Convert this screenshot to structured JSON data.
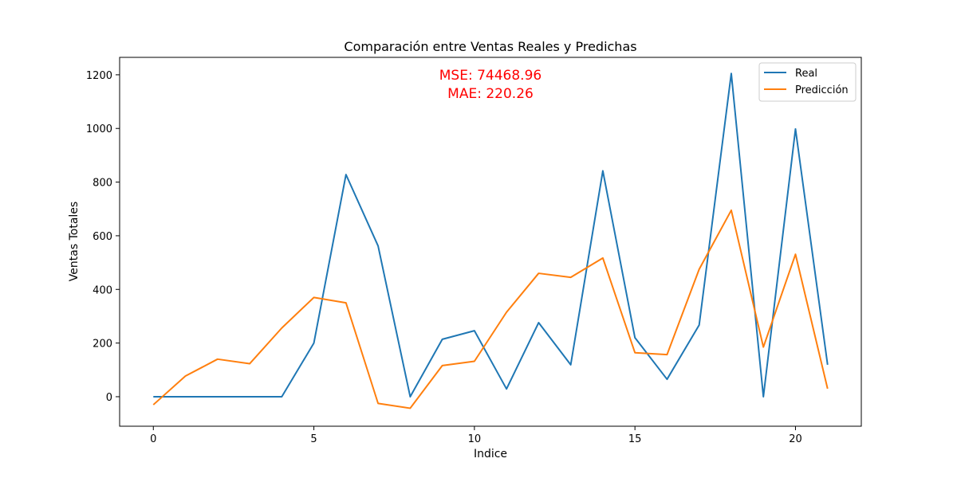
{
  "chart_data": {
    "type": "line",
    "title": "Comparación entre Ventas Reales y Predichas",
    "xlabel": "Indice",
    "ylabel": "Ventas Totales",
    "xlim": [
      -1.05,
      22.05
    ],
    "ylim": [
      -110,
      1265
    ],
    "xticks": [
      0,
      5,
      10,
      15,
      20
    ],
    "yticks": [
      0,
      200,
      400,
      600,
      800,
      1000,
      1200
    ],
    "grid": false,
    "legend_position": "top-right",
    "annotations": [
      "MSE: 74468.96",
      "MAE: 220.26"
    ],
    "annotation_color": "#ff0000",
    "x": [
      0,
      1,
      2,
      3,
      4,
      5,
      6,
      7,
      8,
      9,
      10,
      11,
      12,
      13,
      14,
      15,
      16,
      17,
      18,
      19,
      20,
      21
    ],
    "series": [
      {
        "name": "Real",
        "color": "#1f77b4",
        "values": [
          0,
          0,
          0,
          0,
          0,
          200,
          828,
          562,
          0,
          214,
          246,
          29,
          276,
          119,
          842,
          220,
          65,
          267,
          1205,
          0,
          998,
          119
        ]
      },
      {
        "name": "Predicción",
        "color": "#ff7f0e",
        "values": [
          -30,
          77,
          140,
          123,
          256,
          370,
          350,
          -25,
          -43,
          116,
          132,
          315,
          460,
          445,
          517,
          164,
          157,
          475,
          695,
          185,
          531,
          30
        ]
      }
    ]
  }
}
